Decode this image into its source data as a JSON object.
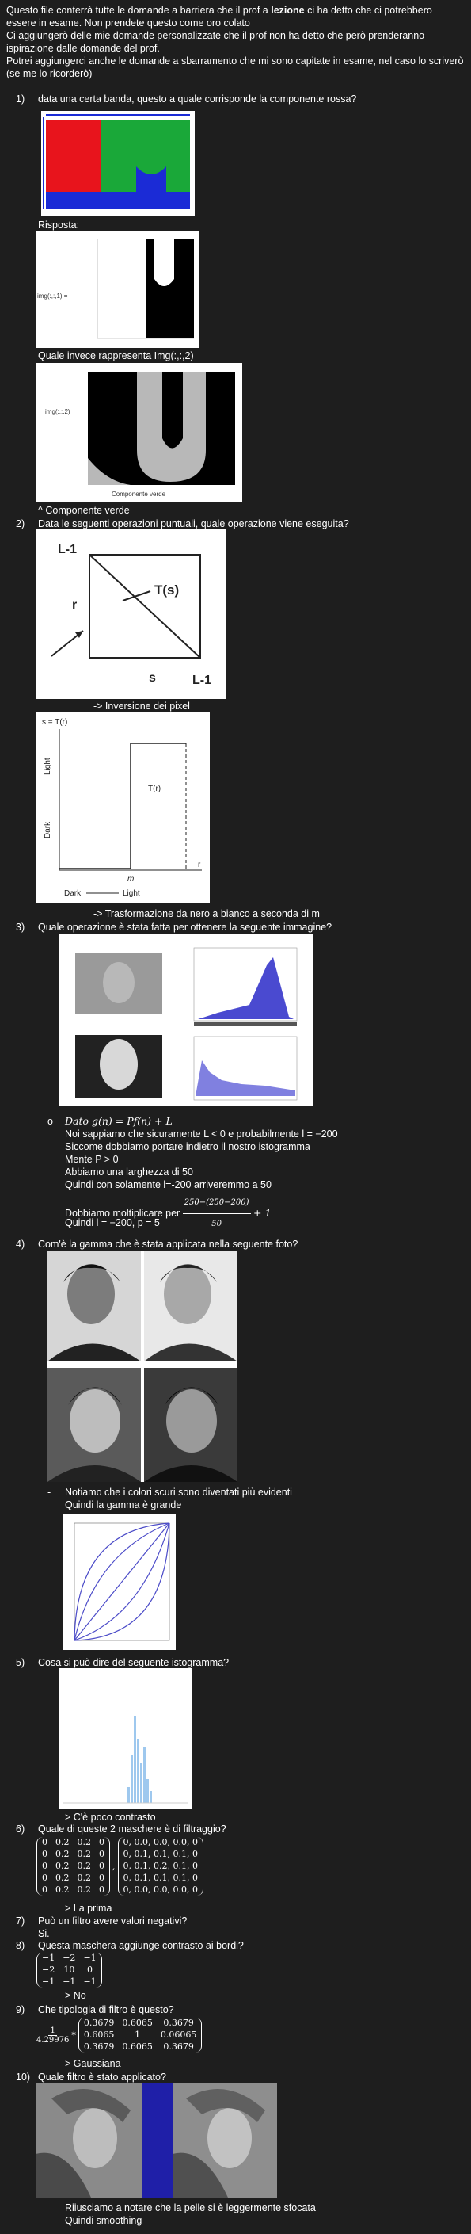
{
  "intro": {
    "p1_before": "Questo file conterrà tutte le domande a barriera che il prof a ",
    "p1_bold": "lezione",
    "p1_after": " ci ha detto che ci potrebbero essere in esame. Non prendete questo come oro colato",
    "p2": "Ci aggiungerò delle mie domande personalizzate che il prof non ha detto che però prenderanno ispirazione dalle domande del prof.",
    "p3": "Potrei aggiungerci anche le domande a sbarramento che mi sono capitate in esame, nel caso lo scriverò (se me lo ricorderò)"
  },
  "q1": {
    "number": "1)",
    "text": "data una certa banda, questo a quale corrisponde la componente rossa?",
    "answer_label": "Risposta:",
    "img1_label": "img(:,:,1) =",
    "follow_up": "Quale invece rappresenta Img(:,:,2)",
    "img2_label": "img(:,:,2)",
    "img2_caption": "Componente verde",
    "answer": "^ Componente verde"
  },
  "q2": {
    "number": "2)",
    "text": "Data le seguenti operazioni puntuali, quale operazione viene eseguita?",
    "fig1_labels": {
      "top": "L-1",
      "r": "r",
      "ts": "T(s)",
      "s": "s",
      "right": "L-1"
    },
    "answer1": "-> Inversione dei pixel",
    "fig2_labels": {
      "s_tr": "s = T(r)",
      "light": "Light",
      "dark": "Dark",
      "tr": "T(r)",
      "r": "r",
      "m": "m",
      "dark_x": "Dark",
      "light_x": "Light"
    },
    "answer2": "-> Trasformazione da nero a bianco a seconda di m"
  },
  "q3": {
    "number": "3)",
    "text": "Quale operazione è stata fatta per ottenere la seguente immagine?",
    "bullet": "o",
    "l1": "Dato g(n) = Pf(n) + L",
    "l2": "Noi sappiamo che sicuramente L < 0 e probabilmente l = −200",
    "l3": "Siccome dobbiamo portare indietro il nostro istogramma",
    "l4": "Mente P > 0",
    "l5": "Abbiamo una larghezza di 50",
    "l6": "Quindi con solamente l=-200 arriveremmo a 50",
    "l7_before": "Dobbiamo moltiplicare per",
    "l7_num": "250−(250−200)",
    "l7_den": "50",
    "l7_after": "+ 1",
    "l8": "Quindi l = −200, p = 5"
  },
  "q4": {
    "number": "4)",
    "text": "Com'è la gamma che è stata applicata nella seguente foto?",
    "dash": "-",
    "a1": "Notiamo che i colori scuri sono diventati più evidenti",
    "a2": "Quindi la gamma è grande"
  },
  "q5": {
    "number": "5)",
    "text": "Cosa si può dire del seguente istogramma?",
    "answer": "> C'è poco contrasto"
  },
  "q6": {
    "number": "6)",
    "text": "Quale di queste 2 maschere è di filtraggio?",
    "matrix_a": [
      [
        "0",
        "0.2",
        "0.2",
        "0"
      ],
      [
        "0",
        "0.2",
        "0.2",
        "0"
      ],
      [
        "0",
        "0.2",
        "0.2",
        "0"
      ],
      [
        "0",
        "0.2",
        "0.2",
        "0"
      ],
      [
        "0",
        "0.2",
        "0.2",
        "0"
      ]
    ],
    "sep": ",",
    "matrix_b": [
      [
        "0, 0.0, 0.0, 0.0, 0"
      ],
      [
        "0, 0.1, 0.1, 0.1, 0"
      ],
      [
        "0, 0.1, 0.2, 0.1, 0"
      ],
      [
        "0, 0.1, 0.1, 0.1, 0"
      ],
      [
        "0, 0.0, 0.0, 0.0, 0"
      ]
    ],
    "answer": "> La prima"
  },
  "q7": {
    "number": "7)",
    "text": "Può un filtro avere valori negativi?",
    "answer": "Si."
  },
  "q8": {
    "number": "8)",
    "text": "Questa maschera aggiunge contrasto ai bordi?",
    "matrix": [
      [
        "−1",
        "−2",
        "−1"
      ],
      [
        "−2",
        "10",
        "0"
      ],
      [
        "−1",
        "−1",
        "−1"
      ]
    ],
    "answer": "> No"
  },
  "q9": {
    "number": "9)",
    "text": "Che tipologia di filtro è questo?",
    "factor_num": "1",
    "factor_den": "4.29976",
    "times": "*",
    "matrix": [
      [
        "0.3679",
        "0.6065",
        "0.3679"
      ],
      [
        "0.6065",
        "1",
        "0.06065"
      ],
      [
        "0.3679",
        "0.6065",
        "0.3679"
      ]
    ],
    "answer": "> Gaussiana"
  },
  "q10": {
    "number": "10)",
    "text": "Quale filtro è stato applicato?",
    "a1": "Riiusciamo a notare che la pelle si è leggermente sfocata",
    "a2": "Quindi smoothing"
  }
}
